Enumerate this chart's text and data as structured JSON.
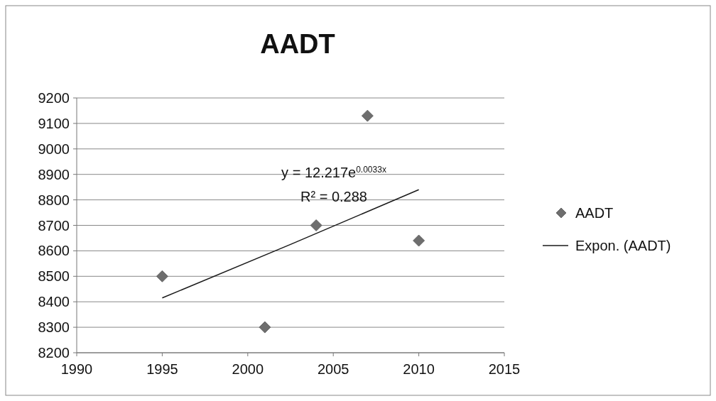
{
  "chart_data": {
    "type": "scatter",
    "title": "AADT",
    "xlim": [
      1990,
      2015
    ],
    "xticks": [
      1990,
      1995,
      2000,
      2005,
      2010,
      2015
    ],
    "ylim": [
      8200,
      9200
    ],
    "yticks": [
      8200,
      8300,
      8400,
      8500,
      8600,
      8700,
      8800,
      8900,
      9000,
      9100,
      9200
    ],
    "grid": "y",
    "legend": "right",
    "marker": "diamond",
    "series": [
      {
        "name": "AADT",
        "color": "#6e6e6e",
        "x": [
          1995,
          2001,
          2004,
          2007,
          2010
        ],
        "values": [
          8500,
          8300,
          8700,
          9130,
          8640
        ]
      },
      {
        "name": "Expon. (AADT)",
        "type": "line",
        "color": "#1a1a1a",
        "marker": "none",
        "line_style": "solid",
        "x": [
          1995,
          2002.5,
          2010
        ],
        "values": [
          8415,
          8625,
          8840
        ]
      }
    ],
    "annotations": [
      "y = 12.217e$^{0.0033x}$",
      "R² = 0.288"
    ]
  }
}
